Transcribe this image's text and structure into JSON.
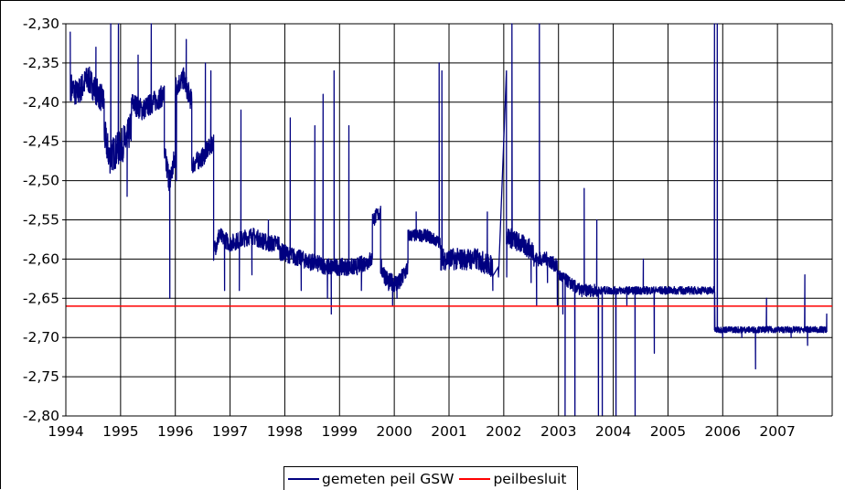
{
  "chart_data": {
    "type": "line",
    "title": "",
    "xlabel": "",
    "ylabel": "",
    "xlim": [
      1994,
      2008
    ],
    "ylim": [
      -2.8,
      -2.3
    ],
    "grid": true,
    "legend_position": "bottom",
    "x_tick_labels": [
      "1994",
      "1995",
      "1996",
      "1997",
      "1998",
      "1999",
      "2000",
      "2001",
      "2002",
      "2003",
      "2004",
      "2005",
      "2006",
      "2007"
    ],
    "y_tick_labels": [
      "-2,30",
      "-2,35",
      "-2,40",
      "-2,45",
      "-2,50",
      "-2,55",
      "-2,60",
      "-2,65",
      "-2,70",
      "-2,75",
      "-2,80"
    ],
    "y_tick_values": [
      -2.3,
      -2.35,
      -2.4,
      -2.45,
      -2.5,
      -2.55,
      -2.6,
      -2.65,
      -2.7,
      -2.75,
      -2.8
    ],
    "series": [
      {
        "name": "gemeten peil GSW",
        "color": "#000080",
        "segments": [
          {
            "x": [
              1994.1,
              1994.2,
              1994.4,
              1994.6,
              1994.7
            ],
            "y": [
              -2.38,
              -2.39,
              -2.37,
              -2.39,
              -2.4
            ],
            "noise": 0.018
          },
          {
            "x": [
              1994.7,
              1994.8,
              1994.95,
              1995.1,
              1995.2
            ],
            "y": [
              -2.44,
              -2.47,
              -2.46,
              -2.45,
              -2.43
            ],
            "noise": 0.022
          },
          {
            "x": [
              1995.2,
              1995.4,
              1995.6,
              1995.8
            ],
            "y": [
              -2.4,
              -2.41,
              -2.4,
              -2.39
            ],
            "noise": 0.014
          },
          {
            "x": [
              1995.8,
              1995.9,
              1996.0
            ],
            "y": [
              -2.47,
              -2.5,
              -2.47
            ],
            "noise": 0.018
          },
          {
            "x": [
              1996.0,
              1996.15,
              1996.3
            ],
            "y": [
              -2.38,
              -2.37,
              -2.4
            ],
            "noise": 0.014
          },
          {
            "x": [
              1996.3,
              1996.5,
              1996.7
            ],
            "y": [
              -2.48,
              -2.47,
              -2.45
            ],
            "noise": 0.012
          },
          {
            "x": [
              1996.7,
              1996.8
            ],
            "y": [
              -2.59,
              -2.57
            ],
            "noise": 0.012
          },
          {
            "x": [
              1996.8,
              1997.0,
              1997.4,
              1997.7,
              1997.9
            ],
            "y": [
              -2.57,
              -2.58,
              -2.57,
              -2.58,
              -2.58
            ],
            "noise": 0.011
          },
          {
            "x": [
              1997.9,
              1998.3,
              1998.8,
              1999.3,
              1999.6
            ],
            "y": [
              -2.59,
              -2.6,
              -2.61,
              -2.61,
              -2.6
            ],
            "noise": 0.011
          },
          {
            "x": [
              1999.6,
              1999.75
            ],
            "y": [
              -2.55,
              -2.54
            ],
            "noise": 0.01
          },
          {
            "x": [
              1999.75,
              1999.9,
              2000.1,
              2000.25
            ],
            "y": [
              -2.61,
              -2.63,
              -2.63,
              -2.61
            ],
            "noise": 0.012
          },
          {
            "x": [
              2000.25,
              2000.6,
              2000.85
            ],
            "y": [
              -2.57,
              -2.57,
              -2.58
            ],
            "noise": 0.008
          },
          {
            "x": [
              2000.85,
              2001.2,
              2001.5,
              2001.8
            ],
            "y": [
              -2.6,
              -2.6,
              -2.6,
              -2.61
            ],
            "noise": 0.014
          },
          {
            "x": [
              2002.05,
              2002.3,
              2002.55
            ],
            "y": [
              -2.57,
              -2.58,
              -2.59
            ],
            "noise": 0.013
          },
          {
            "x": [
              2002.55,
              2002.8,
              2002.98
            ],
            "y": [
              -2.6,
              -2.6,
              -2.61
            ],
            "noise": 0.009
          },
          {
            "x": [
              2003.0,
              2003.2,
              2003.4,
              2003.7
            ],
            "y": [
              -2.62,
              -2.63,
              -2.64,
              -2.64
            ],
            "noise": 0.008
          },
          {
            "x": [
              2003.7,
              2004.0,
              2004.5,
              2005.0,
              2005.4,
              2005.85
            ],
            "y": [
              -2.64,
              -2.64,
              -2.64,
              -2.64,
              -2.64,
              -2.64
            ],
            "noise": 0.005
          },
          {
            "x": [
              2005.85,
              2006.3,
              2006.8,
              2007.3,
              2007.9
            ],
            "y": [
              -2.69,
              -2.69,
              -2.69,
              -2.69,
              -2.69
            ],
            "noise": 0.004
          }
        ],
        "spikes": [
          [
            1994.08,
            -2.31
          ],
          [
            1994.55,
            -2.33
          ],
          [
            1994.82,
            -2.3
          ],
          [
            1994.96,
            -2.3
          ],
          [
            1995.06,
            -2.43
          ],
          [
            1995.12,
            -2.52
          ],
          [
            1995.32,
            -2.34
          ],
          [
            1995.56,
            -2.3
          ],
          [
            1995.9,
            -2.65
          ],
          [
            1996.02,
            -2.5
          ],
          [
            1996.2,
            -2.32
          ],
          [
            1996.55,
            -2.35
          ],
          [
            1996.65,
            -2.36
          ],
          [
            1996.9,
            -2.64
          ],
          [
            1997.17,
            -2.64
          ],
          [
            1997.2,
            -2.41
          ],
          [
            1997.4,
            -2.62
          ],
          [
            1997.7,
            -2.55
          ],
          [
            1998.1,
            -2.42
          ],
          [
            1998.3,
            -2.64
          ],
          [
            1998.55,
            -2.43
          ],
          [
            1998.7,
            -2.39
          ],
          [
            1998.78,
            -2.65
          ],
          [
            1998.85,
            -2.67
          ],
          [
            1998.9,
            -2.36
          ],
          [
            1999.17,
            -2.43
          ],
          [
            1999.4,
            -2.64
          ],
          [
            1999.97,
            -2.66
          ],
          [
            2000.05,
            -2.65
          ],
          [
            2000.4,
            -2.54
          ],
          [
            2000.82,
            -2.35
          ],
          [
            2000.87,
            -2.36
          ],
          [
            2001.7,
            -2.54
          ],
          [
            2001.8,
            -2.64
          ],
          [
            2001.9,
            -2.61
          ],
          [
            2002.05,
            -2.36
          ],
          [
            2002.15,
            -2.3
          ],
          [
            2002.5,
            -2.63
          ],
          [
            2002.6,
            -2.66
          ],
          [
            2002.65,
            -2.3
          ],
          [
            2002.8,
            -2.63
          ],
          [
            2002.9,
            -2.61
          ],
          [
            2002.98,
            -2.66
          ],
          [
            2003.08,
            -2.67
          ],
          [
            2003.12,
            -2.8
          ],
          [
            2003.3,
            -2.8
          ],
          [
            2003.47,
            -2.51
          ],
          [
            2003.7,
            -2.55
          ],
          [
            2003.73,
            -2.8
          ],
          [
            2003.8,
            -2.8
          ],
          [
            2004.05,
            -2.8
          ],
          [
            2004.25,
            -2.66
          ],
          [
            2004.4,
            -2.8
          ],
          [
            2004.55,
            -2.6
          ],
          [
            2004.75,
            -2.72
          ],
          [
            2005.85,
            -2.3
          ],
          [
            2005.9,
            -2.3
          ],
          [
            2006.0,
            -2.7
          ],
          [
            2006.35,
            -2.7
          ],
          [
            2006.6,
            -2.74
          ],
          [
            2006.8,
            -2.65
          ],
          [
            2007.25,
            -2.7
          ],
          [
            2007.5,
            -2.62
          ],
          [
            2007.55,
            -2.71
          ],
          [
            2007.9,
            -2.67
          ]
        ]
      },
      {
        "name": "peilbesluit",
        "color": "#ff0000",
        "x": [
          1994,
          2008
        ],
        "y": [
          -2.66,
          -2.66
        ]
      }
    ]
  }
}
